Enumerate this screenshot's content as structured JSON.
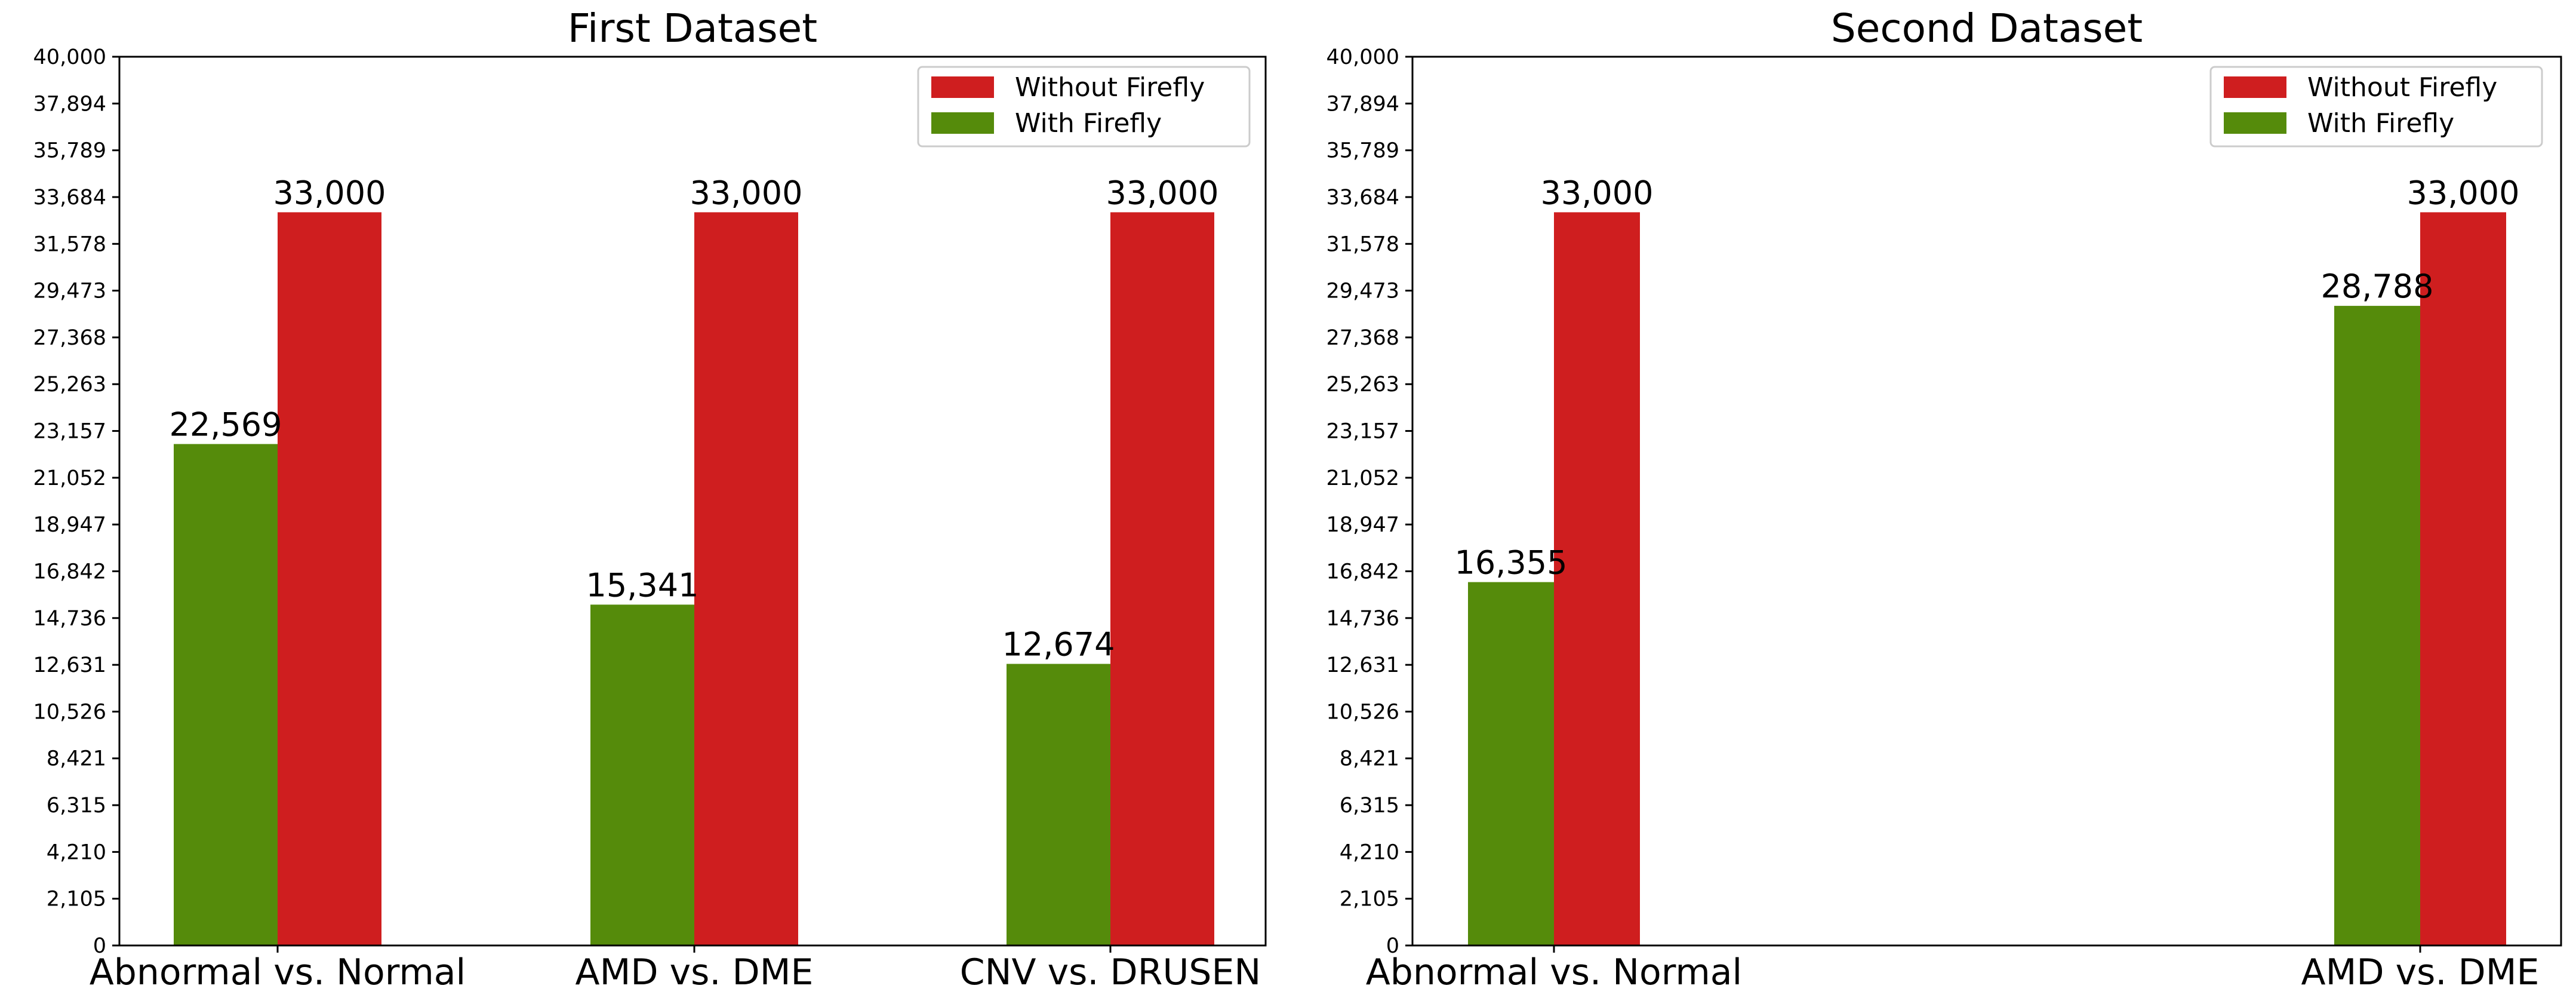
{
  "chart_data": [
    {
      "type": "bar",
      "title": "First Dataset",
      "xlabel": "",
      "ylabel": "",
      "ylim": [
        0,
        40000
      ],
      "yticks": [
        0,
        2105,
        4210,
        6315,
        8421,
        10526,
        12631,
        14736,
        16842,
        18947,
        21052,
        23157,
        25263,
        27368,
        29473,
        31578,
        33684,
        35789,
        37894,
        40000
      ],
      "ytick_labels": [
        "0",
        "2,105",
        "4,210",
        "6,315",
        "8,421",
        "10,526",
        "12,631",
        "14,736",
        "16,842",
        "18,947",
        "21,052",
        "23,157",
        "25,263",
        "27,368",
        "29,473",
        "31,578",
        "33,684",
        "35,789",
        "37,894",
        "40,000"
      ],
      "categories": [
        "Abnormal vs. Normal",
        "AMD vs. DME",
        "CNV vs. DRUSEN"
      ],
      "series": [
        {
          "name": "With Firefly",
          "color": "#558b0b",
          "values": [
            22569,
            15341,
            12674
          ],
          "labels": [
            "22,569",
            "15,341",
            "12,674"
          ]
        },
        {
          "name": "Without Firefly",
          "color": "#cf1e1f",
          "values": [
            33000,
            33000,
            33000
          ],
          "labels": [
            "33,000",
            "33,000",
            "33,000"
          ]
        }
      ],
      "legend": [
        {
          "name": "Without Firefly",
          "color": "#cf1e1f"
        },
        {
          "name": "With Firefly",
          "color": "#558b0b"
        }
      ],
      "legend_position": "top-right",
      "grid": false
    },
    {
      "type": "bar",
      "title": "Second Dataset",
      "xlabel": "",
      "ylabel": "",
      "ylim": [
        0,
        40000
      ],
      "yticks": [
        0,
        2105,
        4210,
        6315,
        8421,
        10526,
        12631,
        14736,
        16842,
        18947,
        21052,
        23157,
        25263,
        27368,
        29473,
        31578,
        33684,
        35789,
        37894,
        40000
      ],
      "ytick_labels": [
        "0",
        "2,105",
        "4,210",
        "6,315",
        "8,421",
        "10,526",
        "12,631",
        "14,736",
        "16,842",
        "18,947",
        "21,052",
        "23,157",
        "25,263",
        "27,368",
        "29,473",
        "31,578",
        "33,684",
        "35,789",
        "37,894",
        "40,000"
      ],
      "categories": [
        "Abnormal vs. Normal",
        "AMD vs. DME"
      ],
      "series": [
        {
          "name": "With Firefly",
          "color": "#558b0b",
          "values": [
            16355,
            28788
          ],
          "labels": [
            "16,355",
            "28,788"
          ]
        },
        {
          "name": "Without Firefly",
          "color": "#cf1e1f",
          "values": [
            33000,
            33000
          ],
          "labels": [
            "33,000",
            "33,000"
          ]
        }
      ],
      "legend": [
        {
          "name": "Without Firefly",
          "color": "#cf1e1f"
        },
        {
          "name": "With Firefly",
          "color": "#558b0b"
        }
      ],
      "legend_position": "top-right",
      "grid": false
    }
  ]
}
